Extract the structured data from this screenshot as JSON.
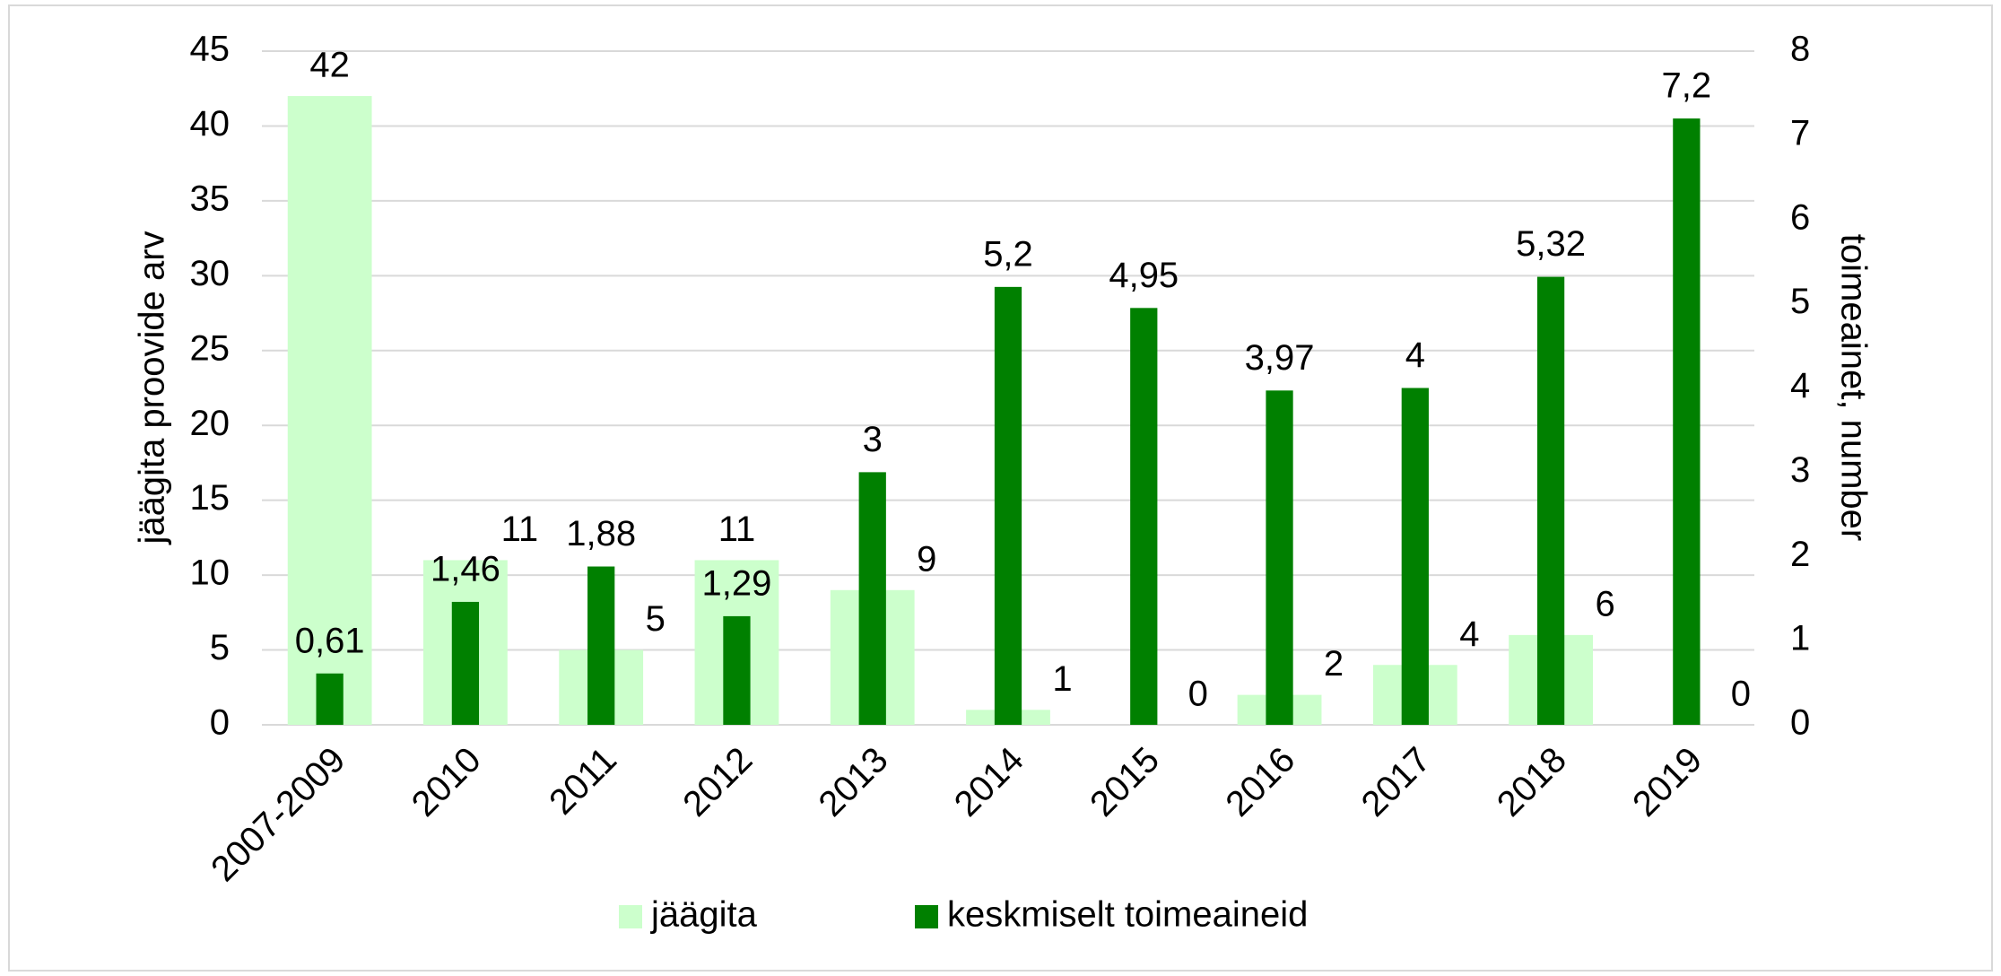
{
  "chart_data": {
    "type": "bar",
    "y_label": "jäägita proovide arv",
    "y2_label": "toimeainet, number",
    "categories": [
      "2007-2009",
      "2010",
      "2011",
      "2012",
      "2013",
      "2014",
      "2015",
      "2016",
      "2017",
      "2018",
      "2019"
    ],
    "series": [
      {
        "name": "jäägita",
        "color": "#ccffcc",
        "values": [
          42,
          11,
          5,
          11,
          9,
          1,
          0,
          2,
          4,
          6,
          0
        ]
      },
      {
        "name": "keskmiselt toimeaineid",
        "color": "#008000",
        "axis": "y2",
        "values": [
          0.61,
          1.46,
          1.88,
          1.29,
          3,
          5.2,
          4.95,
          3.97,
          4,
          5.32,
          7.2
        ],
        "value_labels": [
          "0,61",
          "1,46",
          "1,88",
          "1,29",
          "3",
          "5,2",
          "4,95",
          "3,97",
          "4",
          "5,32",
          "7,2"
        ]
      }
    ],
    "ylim": [
      0,
      45
    ],
    "yticks": [
      0,
      5,
      10,
      15,
      20,
      25,
      30,
      35,
      40,
      45
    ],
    "y2lim": [
      0,
      8
    ],
    "y2ticks": [
      0,
      1,
      2,
      3,
      4,
      5,
      6,
      7,
      8
    ],
    "grid": true,
    "legend": "bottom"
  }
}
